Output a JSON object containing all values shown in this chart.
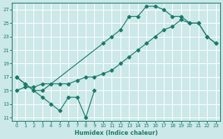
{
  "xlabel": "Humidex (Indice chaleur)",
  "bg_color": "#cce8e8",
  "line_color": "#1a7a6a",
  "grid_color": "#ffffff",
  "xlim": [
    -0.5,
    23.5
  ],
  "ylim": [
    10.5,
    28
  ],
  "xticks": [
    0,
    1,
    2,
    3,
    4,
    5,
    6,
    7,
    8,
    9,
    10,
    11,
    12,
    13,
    14,
    15,
    16,
    17,
    18,
    19,
    20,
    21,
    22,
    23
  ],
  "yticks": [
    11,
    13,
    15,
    17,
    19,
    21,
    23,
    25,
    27
  ],
  "series": [
    {
      "x": [
        0,
        1,
        2,
        3,
        4,
        5,
        6,
        7,
        8,
        9
      ],
      "y": [
        17,
        16,
        15,
        14,
        13,
        12,
        14,
        14,
        11,
        15
      ]
    },
    {
      "x": [
        0,
        1,
        2,
        3,
        10,
        11,
        12,
        13,
        14,
        15,
        16,
        17,
        18,
        19,
        20,
        21,
        22,
        23
      ],
      "y": [
        17,
        16,
        15,
        15,
        22,
        23,
        24,
        26,
        26,
        27.5,
        27.5,
        27,
        26,
        26,
        25,
        25,
        23,
        22
      ]
    },
    {
      "x": [
        0,
        1,
        2,
        3,
        4,
        5,
        6,
        7,
        8,
        9,
        10,
        11,
        12,
        13,
        14,
        15,
        16,
        17,
        18,
        19,
        20,
        21,
        22,
        23
      ],
      "y": [
        15,
        15.5,
        15.5,
        16,
        16,
        16,
        16,
        16.5,
        17,
        17,
        17.5,
        18,
        19,
        20,
        21,
        22,
        23,
        24,
        24.5,
        25.5,
        25,
        25,
        23,
        22
      ]
    }
  ]
}
